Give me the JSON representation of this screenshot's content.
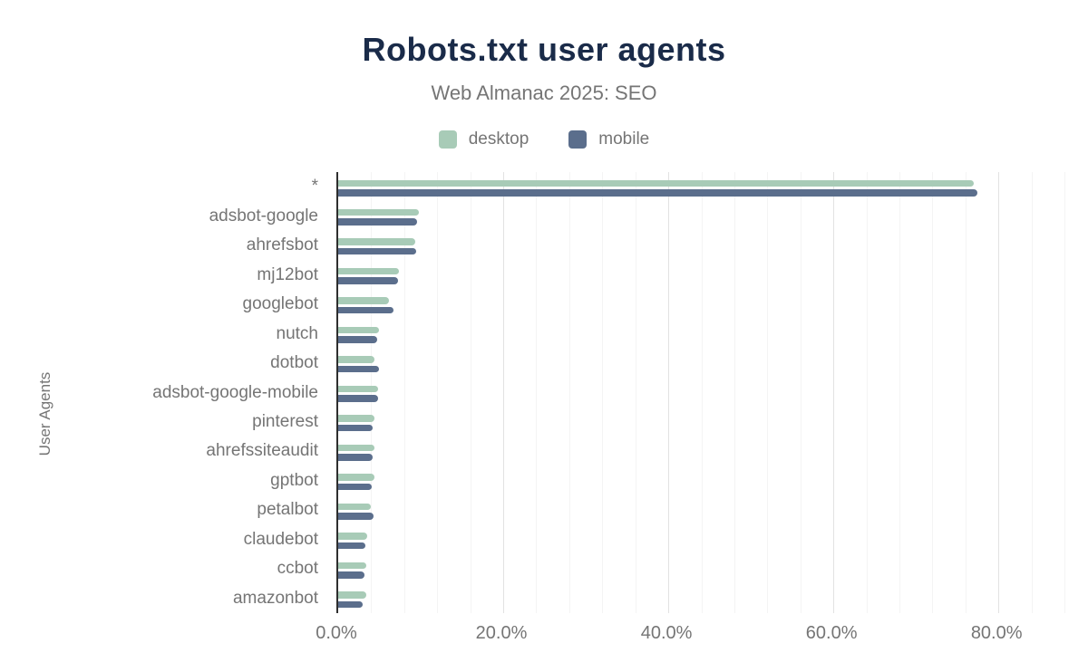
{
  "header": {
    "title": "Robots.txt user agents",
    "subtitle": "Web Almanac 2025: SEO"
  },
  "colors": {
    "desktop": "#a8cbb7",
    "mobile": "#5b6e8c",
    "title_navy": "#1a2b49",
    "label_gray": "#757575",
    "axis_line": "#2e2e2e"
  },
  "chart_data": {
    "type": "bar",
    "orientation": "horizontal",
    "title": "Robots.txt user agents",
    "subtitle": "Web Almanac 2025: SEO",
    "ylabel": "User Agents",
    "xlabel": "",
    "xlim": [
      0,
      88
    ],
    "grid": {
      "minor_step_percent": 4,
      "major_step_percent": 20,
      "gridlines": "vertical"
    },
    "legend_position": "top-center",
    "x_ticks": [
      {
        "value": 0,
        "label": "0.0%"
      },
      {
        "value": 20,
        "label": "20.0%"
      },
      {
        "value": 40,
        "label": "40.0%"
      },
      {
        "value": 60,
        "label": "60.0%"
      },
      {
        "value": 80,
        "label": "80.0%"
      }
    ],
    "categories": [
      "*",
      "adsbot-google",
      "ahrefsbot",
      "mj12bot",
      "googlebot",
      "nutch",
      "dotbot",
      "adsbot-google-mobile",
      "pinterest",
      "ahrefssiteaudit",
      "gptbot",
      "petalbot",
      "claudebot",
      "ccbot",
      "amazonbot"
    ],
    "series": [
      {
        "name": "desktop",
        "color": "#a8cbb7",
        "values": [
          77.0,
          9.8,
          9.3,
          7.4,
          6.2,
          4.9,
          4.4,
          4.8,
          4.4,
          4.4,
          4.4,
          4.0,
          3.5,
          3.4,
          3.4
        ]
      },
      {
        "name": "mobile",
        "color": "#5b6e8c",
        "values": [
          77.4,
          9.6,
          9.5,
          7.3,
          6.7,
          4.7,
          4.9,
          4.8,
          4.2,
          4.2,
          4.1,
          4.3,
          3.3,
          3.2,
          3.0
        ]
      }
    ]
  }
}
